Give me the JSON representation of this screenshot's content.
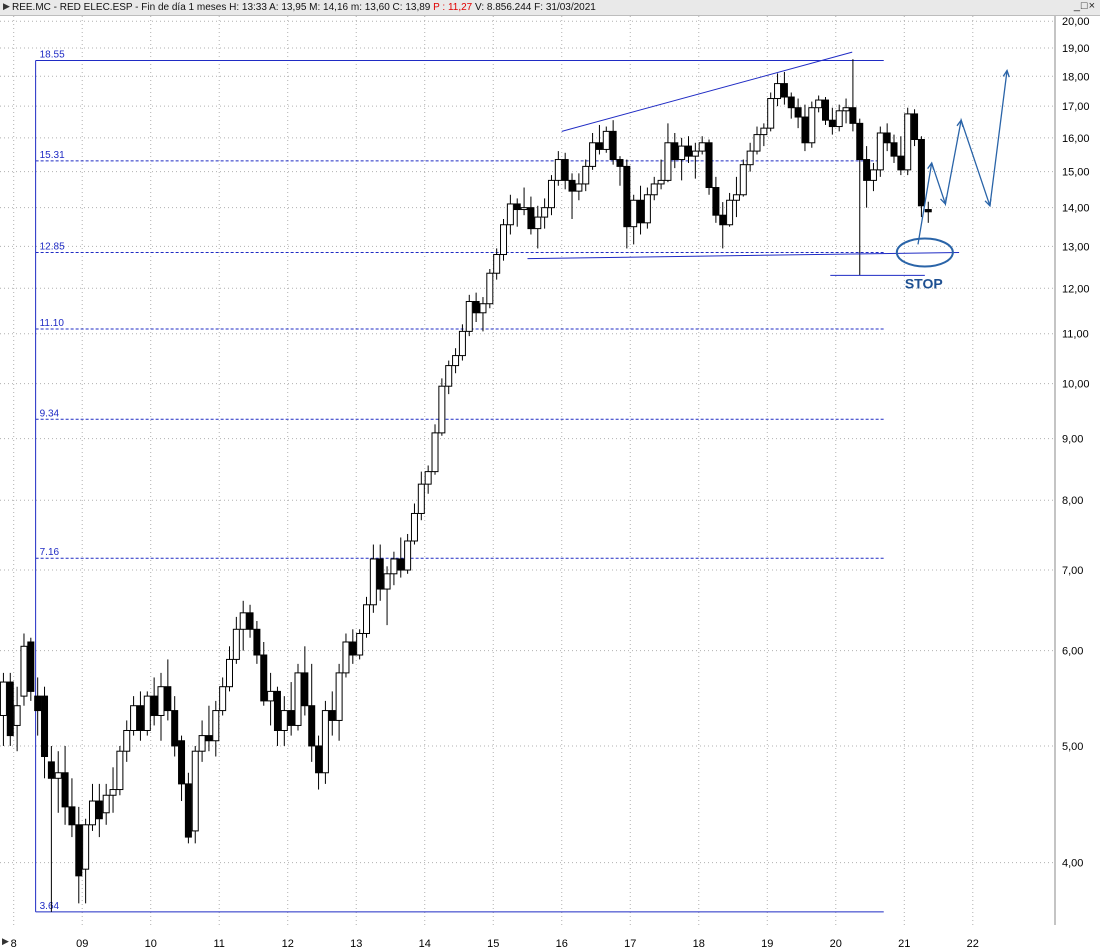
{
  "window": {
    "title_prefix": "REE.MC - RED ELEC.ESP - Fin de día 1 meses  H: 13:33  A: 13,95  M: 14,16  m: 13,60  C: 13,89  ",
    "p_label": "P : 11,27",
    "title_suffix": "  V: 8.856.244  F: 31/03/2021",
    "controls": "_□×"
  },
  "colors": {
    "background": "#ffffff",
    "lines": "#1f2bc4",
    "grid": "#b0b0b0",
    "candle": "#000000",
    "annotation": "#2a64a8",
    "stop_label": "#1d4f91"
  },
  "chart_data": {
    "type": "candlestick",
    "scale": "log",
    "ylim": [
      3.55,
      20.2
    ],
    "y_ticks": [
      {
        "v": 20,
        "l": "20,00"
      },
      {
        "v": 19,
        "l": "19,00"
      },
      {
        "v": 18,
        "l": "18,00"
      },
      {
        "v": 17,
        "l": "17,00"
      },
      {
        "v": 16,
        "l": "16,00"
      },
      {
        "v": 15,
        "l": "15,00"
      },
      {
        "v": 14,
        "l": "14,00"
      },
      {
        "v": 13,
        "l": "13,00"
      },
      {
        "v": 12,
        "l": "12,00"
      },
      {
        "v": 11,
        "l": "11,00"
      },
      {
        "v": 10,
        "l": "10,00"
      },
      {
        "v": 9,
        "l": "9,00"
      },
      {
        "v": 8,
        "l": "8,00"
      },
      {
        "v": 7,
        "l": "7,00"
      },
      {
        "v": 6,
        "l": "6,00"
      },
      {
        "v": 5,
        "l": "5,00"
      },
      {
        "v": 4,
        "l": "4,00"
      }
    ],
    "x_labels": [
      "8",
      "09",
      "10",
      "11",
      "12",
      "13",
      "14",
      "15",
      "16",
      "17",
      "18",
      "19",
      "20",
      "21",
      "22"
    ],
    "x_domain": [
      2007.8,
      2023.2
    ],
    "fib_levels": [
      {
        "v": 18.55,
        "l": "18.55",
        "style": "solid"
      },
      {
        "v": 15.31,
        "l": "15.31",
        "style": "dashed"
      },
      {
        "v": 12.85,
        "l": "12.85",
        "style": "dashed"
      },
      {
        "v": 11.1,
        "l": "11.10",
        "style": "dashed"
      },
      {
        "v": 9.34,
        "l": "9.34",
        "style": "dashed"
      },
      {
        "v": 7.16,
        "l": "7.16",
        "style": "dashed"
      },
      {
        "v": 3.64,
        "l": "3.64",
        "style": "solid"
      }
    ],
    "fib_x_range": [
      2008.32,
      2020.7
    ],
    "trendlines": [
      {
        "name": "upper-trendline",
        "x1": 2016.0,
        "y1": 16.2,
        "x2": 2020.24,
        "y2": 18.85
      },
      {
        "name": "support-line",
        "x1": 2015.5,
        "y1": 12.7,
        "x2": 2021.8,
        "y2": 12.85
      },
      {
        "name": "stop-line",
        "x1": 2019.92,
        "y1": 12.3,
        "x2": 2021.3,
        "y2": 12.3
      }
    ],
    "projection_path": [
      [
        2021.2,
        13.05
      ],
      [
        2021.4,
        15.25
      ],
      [
        2021.6,
        14.1
      ],
      [
        2021.83,
        16.55
      ],
      [
        2022.25,
        14.05
      ],
      [
        2022.5,
        18.2
      ]
    ],
    "stop_label": "STOP",
    "stop_ellipse": {
      "x": 2021.3,
      "y": 12.85
    },
    "candles": [
      [
        2007.85,
        5.3,
        5.75,
        5.0,
        5.65
      ],
      [
        2007.95,
        5.65,
        5.75,
        5.0,
        5.1
      ],
      [
        2008.05,
        5.2,
        5.6,
        4.95,
        5.4
      ],
      [
        2008.15,
        5.5,
        6.2,
        5.4,
        6.05
      ],
      [
        2008.25,
        6.1,
        6.15,
        5.45,
        5.55
      ],
      [
        2008.35,
        5.5,
        5.7,
        5.1,
        5.35
      ],
      [
        2008.45,
        5.5,
        5.6,
        4.7,
        4.9
      ],
      [
        2008.55,
        4.85,
        5.0,
        3.64,
        4.7
      ],
      [
        2008.65,
        4.7,
        4.95,
        4.4,
        4.75
      ],
      [
        2008.75,
        4.75,
        5.0,
        4.3,
        4.45
      ],
      [
        2008.85,
        4.45,
        4.7,
        4.2,
        4.3
      ],
      [
        2008.95,
        4.3,
        4.45,
        3.7,
        3.9
      ],
      [
        2009.05,
        3.95,
        4.35,
        3.7,
        4.3
      ],
      [
        2009.15,
        4.3,
        4.65,
        4.25,
        4.5
      ],
      [
        2009.25,
        4.5,
        4.65,
        4.2,
        4.35
      ],
      [
        2009.35,
        4.4,
        4.65,
        4.3,
        4.55
      ],
      [
        2009.45,
        4.55,
        4.8,
        4.4,
        4.6
      ],
      [
        2009.55,
        4.6,
        5.0,
        4.55,
        4.95
      ],
      [
        2009.65,
        4.95,
        5.25,
        4.85,
        5.15
      ],
      [
        2009.75,
        5.15,
        5.5,
        5.1,
        5.4
      ],
      [
        2009.85,
        5.4,
        5.55,
        5.05,
        5.15
      ],
      [
        2009.95,
        5.15,
        5.55,
        5.1,
        5.5
      ],
      [
        2010.05,
        5.5,
        5.7,
        5.2,
        5.3
      ],
      [
        2010.15,
        5.3,
        5.75,
        5.05,
        5.6
      ],
      [
        2010.25,
        5.6,
        5.9,
        5.25,
        5.35
      ],
      [
        2010.35,
        5.35,
        5.5,
        4.9,
        5.0
      ],
      [
        2010.45,
        5.05,
        5.1,
        4.5,
        4.65
      ],
      [
        2010.55,
        4.65,
        4.75,
        4.15,
        4.2
      ],
      [
        2010.65,
        4.25,
        5.0,
        4.15,
        4.95
      ],
      [
        2010.75,
        4.95,
        5.25,
        4.85,
        5.1
      ],
      [
        2010.85,
        5.1,
        5.4,
        4.95,
        5.05
      ],
      [
        2010.95,
        5.05,
        5.45,
        4.9,
        5.35
      ],
      [
        2011.05,
        5.35,
        5.7,
        5.3,
        5.6
      ],
      [
        2011.15,
        5.6,
        6.05,
        5.55,
        5.9
      ],
      [
        2011.25,
        5.9,
        6.4,
        5.85,
        6.25
      ],
      [
        2011.35,
        6.25,
        6.6,
        6.0,
        6.45
      ],
      [
        2011.45,
        6.45,
        6.55,
        6.15,
        6.25
      ],
      [
        2011.55,
        6.25,
        6.35,
        5.85,
        5.95
      ],
      [
        2011.65,
        5.95,
        6.1,
        5.4,
        5.45
      ],
      [
        2011.75,
        5.45,
        5.75,
        5.2,
        5.55
      ],
      [
        2011.85,
        5.55,
        5.6,
        5.0,
        5.15
      ],
      [
        2011.95,
        5.15,
        5.5,
        5.0,
        5.35
      ],
      [
        2012.05,
        5.35,
        5.65,
        5.1,
        5.2
      ],
      [
        2012.15,
        5.2,
        5.85,
        5.15,
        5.75
      ],
      [
        2012.25,
        5.75,
        6.05,
        5.3,
        5.4
      ],
      [
        2012.35,
        5.4,
        5.85,
        4.85,
        5.0
      ],
      [
        2012.45,
        5.0,
        5.1,
        4.6,
        4.75
      ],
      [
        2012.55,
        4.75,
        5.45,
        4.65,
        5.35
      ],
      [
        2012.65,
        5.35,
        5.55,
        5.1,
        5.25
      ],
      [
        2012.75,
        5.25,
        5.85,
        5.05,
        5.75
      ],
      [
        2012.85,
        5.75,
        6.2,
        5.7,
        6.1
      ],
      [
        2012.95,
        6.1,
        6.25,
        5.85,
        5.95
      ],
      [
        2013.05,
        5.95,
        6.25,
        5.9,
        6.2
      ],
      [
        2013.15,
        6.2,
        6.65,
        6.15,
        6.55
      ],
      [
        2013.25,
        6.55,
        7.35,
        6.45,
        7.15
      ],
      [
        2013.35,
        7.15,
        7.35,
        6.6,
        6.75
      ],
      [
        2013.45,
        6.75,
        7.05,
        6.3,
        6.95
      ],
      [
        2013.55,
        6.95,
        7.25,
        6.8,
        7.15
      ],
      [
        2013.65,
        7.15,
        7.45,
        6.9,
        7.0
      ],
      [
        2013.75,
        7.0,
        7.5,
        6.95,
        7.4
      ],
      [
        2013.85,
        7.4,
        7.95,
        7.35,
        7.8
      ],
      [
        2013.95,
        7.8,
        8.45,
        7.7,
        8.25
      ],
      [
        2014.05,
        8.25,
        8.55,
        8.1,
        8.45
      ],
      [
        2014.15,
        8.45,
        9.25,
        8.4,
        9.1
      ],
      [
        2014.25,
        9.1,
        10.1,
        9.05,
        9.95
      ],
      [
        2014.35,
        9.95,
        10.45,
        9.8,
        10.35
      ],
      [
        2014.45,
        10.35,
        10.7,
        10.2,
        10.55
      ],
      [
        2014.55,
        10.55,
        11.2,
        10.45,
        11.05
      ],
      [
        2014.65,
        11.05,
        11.85,
        10.95,
        11.7
      ],
      [
        2014.75,
        11.7,
        11.9,
        11.25,
        11.45
      ],
      [
        2014.85,
        11.45,
        11.8,
        11.05,
        11.65
      ],
      [
        2014.95,
        11.65,
        12.45,
        11.55,
        12.35
      ],
      [
        2015.05,
        12.35,
        12.95,
        12.2,
        12.8
      ],
      [
        2015.15,
        12.8,
        13.7,
        12.65,
        13.55
      ],
      [
        2015.25,
        13.55,
        14.35,
        13.3,
        14.1
      ],
      [
        2015.35,
        14.1,
        14.25,
        13.5,
        13.95
      ],
      [
        2015.45,
        13.95,
        14.55,
        13.8,
        14.0
      ],
      [
        2015.55,
        14.0,
        14.3,
        13.3,
        13.45
      ],
      [
        2015.65,
        13.45,
        14.05,
        12.95,
        13.75
      ],
      [
        2015.75,
        13.75,
        14.25,
        13.45,
        14.0
      ],
      [
        2015.85,
        14.0,
        14.9,
        13.8,
        14.75
      ],
      [
        2015.95,
        14.75,
        15.6,
        14.6,
        15.35
      ],
      [
        2016.05,
        15.35,
        15.55,
        14.5,
        14.75
      ],
      [
        2016.15,
        14.75,
        14.95,
        13.7,
        14.45
      ],
      [
        2016.25,
        14.45,
        14.95,
        14.2,
        14.65
      ],
      [
        2016.35,
        14.65,
        15.35,
        14.45,
        15.15
      ],
      [
        2016.45,
        15.15,
        16.15,
        15.05,
        15.85
      ],
      [
        2016.55,
        15.85,
        16.4,
        15.5,
        15.65
      ],
      [
        2016.65,
        15.65,
        16.35,
        15.55,
        16.2
      ],
      [
        2016.75,
        16.2,
        16.55,
        15.2,
        15.35
      ],
      [
        2016.85,
        15.35,
        15.45,
        14.6,
        15.15
      ],
      [
        2016.95,
        15.15,
        15.35,
        12.95,
        13.5
      ],
      [
        2017.05,
        13.5,
        14.35,
        13.05,
        14.2
      ],
      [
        2017.15,
        14.2,
        14.6,
        13.3,
        13.6
      ],
      [
        2017.25,
        13.6,
        14.55,
        13.45,
        14.35
      ],
      [
        2017.35,
        14.35,
        14.85,
        14.2,
        14.65
      ],
      [
        2017.45,
        14.65,
        15.35,
        14.5,
        14.75
      ],
      [
        2017.55,
        14.75,
        16.45,
        14.7,
        15.85
      ],
      [
        2017.65,
        15.85,
        16.15,
        15.1,
        15.35
      ],
      [
        2017.75,
        15.35,
        16.0,
        14.75,
        15.75
      ],
      [
        2017.85,
        15.75,
        16.05,
        15.25,
        15.45
      ],
      [
        2017.95,
        15.45,
        15.85,
        14.8,
        15.6
      ],
      [
        2018.05,
        15.6,
        16.05,
        15.5,
        15.85
      ],
      [
        2018.15,
        15.85,
        15.95,
        14.35,
        14.55
      ],
      [
        2018.25,
        14.55,
        14.85,
        13.6,
        13.8
      ],
      [
        2018.35,
        13.8,
        14.15,
        12.95,
        13.55
      ],
      [
        2018.45,
        13.55,
        14.4,
        13.5,
        14.2
      ],
      [
        2018.55,
        14.2,
        14.85,
        13.75,
        14.35
      ],
      [
        2018.65,
        14.35,
        15.35,
        14.3,
        15.2
      ],
      [
        2018.75,
        15.2,
        15.85,
        15.0,
        15.6
      ],
      [
        2018.85,
        15.6,
        16.35,
        15.5,
        16.1
      ],
      [
        2018.95,
        16.1,
        16.45,
        15.75,
        16.3
      ],
      [
        2019.05,
        16.3,
        17.45,
        16.2,
        17.25
      ],
      [
        2019.15,
        17.25,
        18.1,
        17.0,
        17.75
      ],
      [
        2019.25,
        17.75,
        18.15,
        17.05,
        17.3
      ],
      [
        2019.35,
        17.3,
        17.45,
        16.6,
        16.95
      ],
      [
        2019.45,
        16.95,
        17.25,
        16.3,
        16.65
      ],
      [
        2019.55,
        16.65,
        17.05,
        15.6,
        15.85
      ],
      [
        2019.65,
        15.85,
        17.15,
        15.7,
        16.95
      ],
      [
        2019.75,
        16.95,
        17.35,
        16.8,
        17.2
      ],
      [
        2019.85,
        17.2,
        17.3,
        16.4,
        16.55
      ],
      [
        2019.95,
        16.55,
        16.95,
        16.1,
        16.35
      ],
      [
        2020.05,
        16.35,
        17.05,
        16.2,
        16.85
      ],
      [
        2020.15,
        16.85,
        17.25,
        16.45,
        16.95
      ],
      [
        2020.25,
        16.95,
        18.6,
        16.2,
        16.45
      ],
      [
        2020.35,
        16.45,
        16.6,
        12.3,
        15.35
      ],
      [
        2020.45,
        15.35,
        15.75,
        14.0,
        14.75
      ],
      [
        2020.55,
        14.75,
        15.25,
        14.45,
        15.05
      ],
      [
        2020.65,
        15.05,
        16.35,
        14.85,
        16.15
      ],
      [
        2020.75,
        16.15,
        16.45,
        15.6,
        15.85
      ],
      [
        2020.85,
        15.85,
        16.1,
        15.25,
        15.45
      ],
      [
        2020.95,
        15.45,
        16.05,
        14.9,
        15.05
      ],
      [
        2021.05,
        15.05,
        16.95,
        14.9,
        16.75
      ],
      [
        2021.15,
        16.75,
        16.9,
        15.75,
        15.95
      ],
      [
        2021.25,
        15.95,
        16.05,
        13.75,
        14.05
      ],
      [
        2021.35,
        13.95,
        14.16,
        13.6,
        13.89
      ]
    ]
  }
}
